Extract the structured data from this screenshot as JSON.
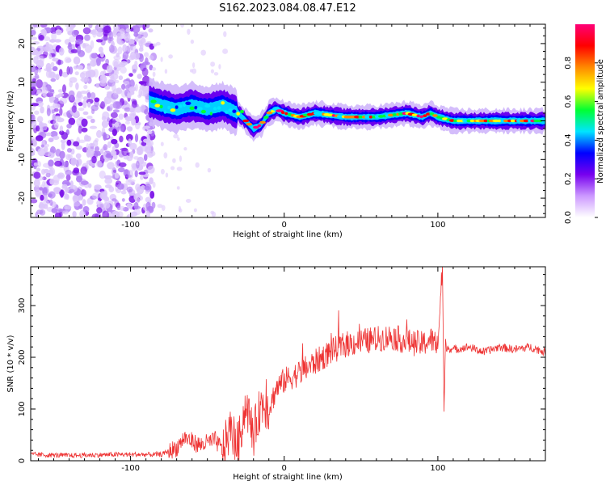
{
  "figure": {
    "title": "S162.2023.084.08.47.E12"
  },
  "chart_data": [
    {
      "type": "heatmap",
      "xlabel": "Height of straight line (km)",
      "ylabel": "Frequency (Hz)",
      "xlim": [
        -165,
        170
      ],
      "ylim": [
        -25,
        25
      ],
      "xticks": [
        -100,
        0,
        100
      ],
      "yticks": [
        -20,
        -10,
        0,
        10,
        20
      ],
      "colorbar": {
        "label": "Normalized spectral amplitude",
        "range": [
          0,
          1
        ],
        "ticks": [
          0.0,
          0.2,
          0.4,
          0.6,
          0.8
        ],
        "colormap": [
          "#ffffff",
          "#cc99ff",
          "#7700ee",
          "#0000ff",
          "#00e5ff",
          "#00ff33",
          "#ffff00",
          "#ff8800",
          "#ff0000",
          "#ff0077"
        ]
      },
      "ridge": {
        "x": [
          -88,
          -80,
          -70,
          -60,
          -50,
          -40,
          -30,
          -25,
          -20,
          -15,
          -10,
          -5,
          0,
          10,
          20,
          40,
          60,
          80,
          90,
          95,
          100,
          110,
          130,
          150,
          170
        ],
        "y": [
          5,
          4,
          3,
          4,
          3,
          4,
          2,
          0,
          -2,
          -1,
          2,
          3,
          2,
          1,
          2,
          1,
          1,
          2,
          1,
          2,
          1,
          0,
          0,
          0,
          0
        ]
      },
      "noise_region": {
        "x_range": [
          -165,
          -85
        ]
      }
    },
    {
      "type": "line",
      "xlabel": "Height of straight line (km)",
      "ylabel": "SNR (10 * v/v)",
      "xlim": [
        -165,
        170
      ],
      "ylim": [
        0,
        375
      ],
      "xticks": [
        -100,
        0,
        100
      ],
      "yticks": [
        0,
        100,
        200,
        300
      ],
      "series": [
        {
          "color": "#ee3333",
          "x": [
            -165,
            -140,
            -110,
            -80,
            -70,
            -65,
            -55,
            -45,
            -40,
            -35,
            -30,
            -25,
            -20,
            -15,
            -10,
            -5,
            0,
            10,
            20,
            30,
            40,
            50,
            60,
            70,
            80,
            90,
            95,
            100,
            103,
            104,
            105,
            110,
            120,
            130,
            140,
            150,
            160,
            170
          ],
          "y": [
            12,
            10,
            12,
            12,
            25,
            45,
            30,
            40,
            20,
            60,
            30,
            110,
            50,
            110,
            100,
            140,
            155,
            170,
            190,
            210,
            225,
            230,
            235,
            240,
            230,
            225,
            235,
            225,
            375,
            95,
            220,
            215,
            220,
            210,
            220,
            215,
            220,
            210
          ]
        }
      ]
    }
  ]
}
